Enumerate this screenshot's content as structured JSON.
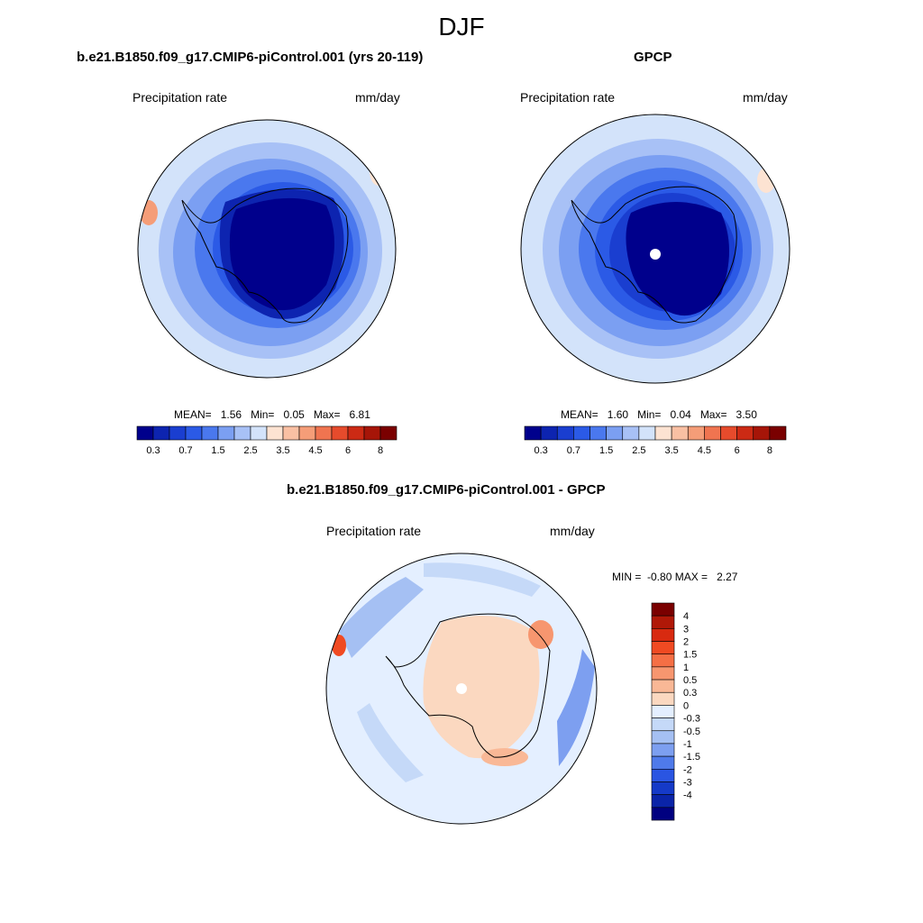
{
  "figure": {
    "title": "DJF"
  },
  "panels": [
    {
      "title": "b.e21.B1850.f09_g17.CMIP6-piControl.001 (yrs 20-119)",
      "left_label": "Precipitation rate",
      "right_label": "mm/day",
      "stats": {
        "mean_label": "MEAN=",
        "mean": "1.56",
        "min_label": "Min=",
        "min": "0.05",
        "max_label": "Max=",
        "max": "6.81"
      }
    },
    {
      "title": "GPCP",
      "left_label": "Precipitation rate",
      "right_label": "mm/day",
      "stats": {
        "mean_label": "MEAN=",
        "mean": "1.60",
        "min_label": "Min=",
        "min": "0.04",
        "max_label": "Max=",
        "max": "3.50"
      }
    },
    {
      "title": "b.e21.B1850.f09_g17.CMIP6-piControl.001 - GPCP",
      "left_label": "Precipitation rate",
      "right_label": "mm/day",
      "stats": {
        "min_label": "MIN =",
        "min": "-0.80",
        "max_label": "MAX =",
        "max": "2.27"
      }
    }
  ],
  "colorbars": {
    "precip": {
      "colors": [
        "#00008c",
        "#0d24b0",
        "#1a3ed0",
        "#2b5ae6",
        "#4a78ee",
        "#7b9ff2",
        "#a8c1f6",
        "#d3e3fa",
        "#fde3d2",
        "#f9c0a3",
        "#f59d78",
        "#f07450",
        "#e64b2c",
        "#cc2a14",
        "#a61508",
        "#7a0000"
      ],
      "labels": [
        "0.3",
        "0.7",
        "1.5",
        "2.5",
        "3.5",
        "4.5",
        "6",
        "8"
      ]
    },
    "diff": {
      "colors": [
        "#7a0000",
        "#b01808",
        "#d82a10",
        "#f04a22",
        "#f56f45",
        "#f7966f",
        "#f9b896",
        "#fbd8c0",
        "#e4efff",
        "#c5d9f8",
        "#a5c0f3",
        "#7d9ff0",
        "#4f7aea",
        "#2a55e2",
        "#153ac8",
        "#0a24a8",
        "#000080"
      ],
      "labels": [
        "4",
        "3",
        "2",
        "1.5",
        "1",
        "0.5",
        "0.3",
        "0",
        "-0.3",
        "-0.5",
        "-1",
        "-1.5",
        "-2",
        "-3",
        "-4"
      ]
    }
  }
}
